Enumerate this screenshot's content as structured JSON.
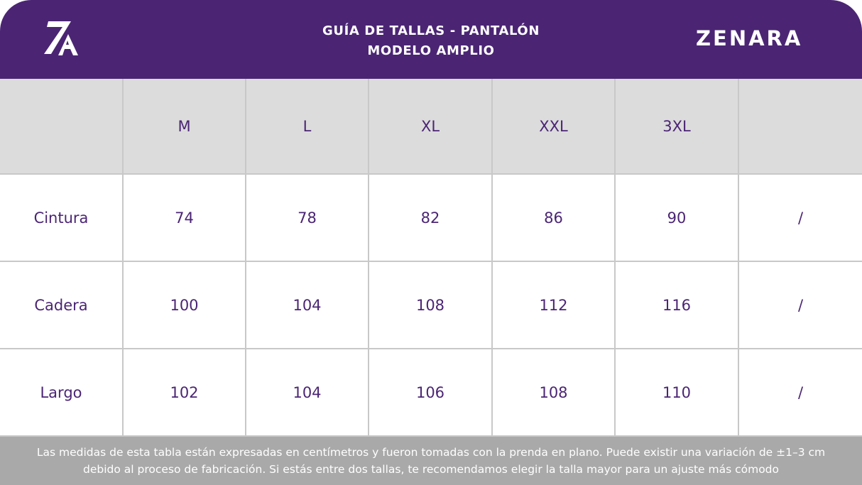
{
  "header": {
    "title_line1": "GUÍA DE TALLAS - PANTALÓN",
    "title_line2": "MODELO AMPLIO",
    "brand": "ZENARA",
    "logo_text": "ZA",
    "logo_icon": "za-logo-icon",
    "bg_color": "#4b2574"
  },
  "table": {
    "sizes": [
      "M",
      "L",
      "XL",
      "XXL",
      "3XL"
    ],
    "rows": [
      {
        "label": "Cintura",
        "values": [
          "74",
          "78",
          "82",
          "86",
          "90"
        ],
        "extra": "/"
      },
      {
        "label": "Cadera",
        "values": [
          "100",
          "104",
          "108",
          "112",
          "116"
        ],
        "extra": "/"
      },
      {
        "label": "Largo",
        "values": [
          "102",
          "104",
          "106",
          "108",
          "110"
        ],
        "extra": "/"
      }
    ],
    "header_bg": "#dcdcdc",
    "text_color": "#4b2574"
  },
  "footer": {
    "line1": "Las medidas de esta tabla están expresadas en centímetros y fueron tomadas con la prenda en plano. Puede existir una variación de ±1–3 cm",
    "line2": "debido al proceso de fabricación. Si estás entre dos tallas, te recomendamos elegir la talla mayor para un ajuste más cómodo",
    "bg_color": "#a9a9a9"
  }
}
